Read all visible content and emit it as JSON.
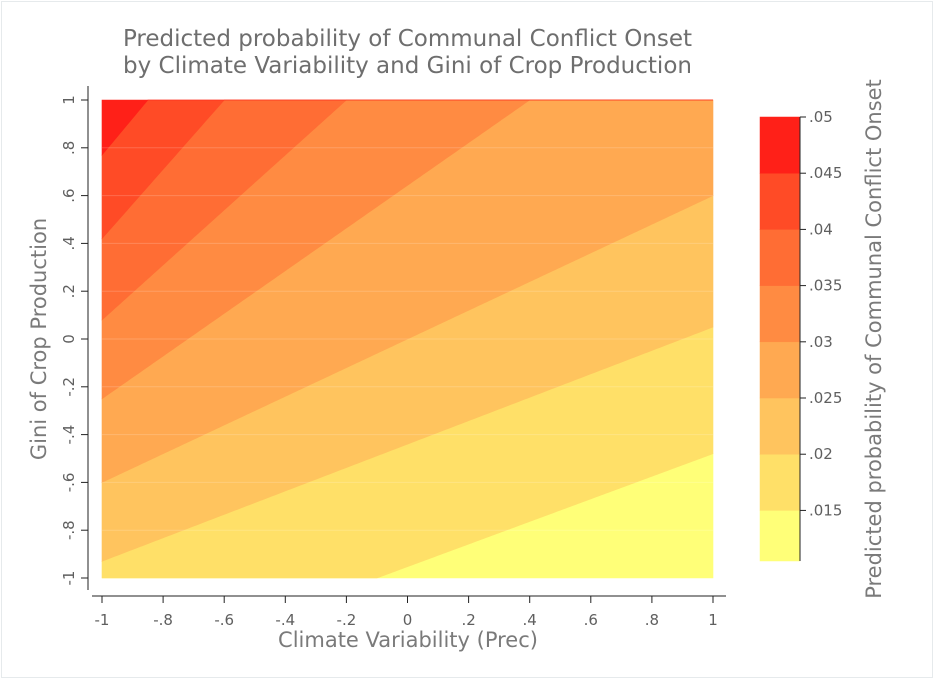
{
  "chart_data": {
    "type": "contour",
    "title_line1": "Predicted probability of Communal Conflict Onset",
    "title_line2": "by Climate Variability and Gini of Crop Production",
    "xlabel": "Climate Variability (Prec)",
    "ylabel": "Gini of Crop Production",
    "xlim": [
      -1,
      1
    ],
    "ylim": [
      -1,
      1
    ],
    "x_ticks": [
      -1,
      -0.8,
      -0.6,
      -0.4,
      -0.2,
      0,
      0.2,
      0.4,
      0.6,
      0.8,
      1
    ],
    "x_tick_labels": [
      "-1",
      "-.8",
      "-.6",
      "-.4",
      "-.2",
      "0",
      ".2",
      ".4",
      ".6",
      ".8",
      "1"
    ],
    "y_ticks": [
      -1,
      -0.8,
      -0.6,
      -0.4,
      -0.2,
      0,
      0.2,
      0.4,
      0.6,
      0.8,
      1
    ],
    "y_tick_labels": [
      "-1",
      "-.8",
      "-.6",
      "-.4",
      "-.2",
      "0",
      ".2",
      ".4",
      ".6",
      ".8",
      "1"
    ],
    "contour_levels": [
      0.015,
      0.02,
      0.025,
      0.03,
      0.035,
      0.04,
      0.045
    ],
    "contour_lines": [
      {
        "level": 0.015,
        "points": [
          [
            -0.1,
            -1
          ],
          [
            1,
            -0.48
          ]
        ]
      },
      {
        "level": 0.02,
        "points": [
          [
            -1,
            -0.93
          ],
          [
            1,
            0.05
          ]
        ]
      },
      {
        "level": 0.025,
        "points": [
          [
            -1,
            -0.6
          ],
          [
            1,
            0.6
          ]
        ]
      },
      {
        "level": 0.03,
        "points": [
          [
            -1,
            -0.25
          ],
          [
            0.4,
            1
          ]
        ]
      },
      {
        "level": 0.035,
        "points": [
          [
            -1,
            0.08
          ],
          [
            -0.2,
            1
          ]
        ]
      },
      {
        "level": 0.04,
        "points": [
          [
            -1,
            0.42
          ],
          [
            -0.6,
            1
          ]
        ]
      },
      {
        "level": 0.045,
        "points": [
          [
            -1,
            0.77
          ],
          [
            -0.85,
            1
          ]
        ]
      }
    ],
    "band_colors": [
      "#ffff78",
      "#ffe068",
      "#ffc45e",
      "#ffa951",
      "#ff8b42",
      "#ff6d34",
      "#ff4b26",
      "#ff2018"
    ],
    "legend": {
      "title": "Predicted probability of Communal Conflict Onset",
      "position": "right",
      "labels": [
        ".015",
        ".02",
        ".025",
        ".03",
        ".035",
        ".04",
        ".045",
        ".05"
      ],
      "label_values": [
        0.015,
        0.02,
        0.025,
        0.03,
        0.035,
        0.04,
        0.045,
        0.05
      ],
      "range": [
        0.0105,
        0.05
      ]
    },
    "grid": true
  }
}
